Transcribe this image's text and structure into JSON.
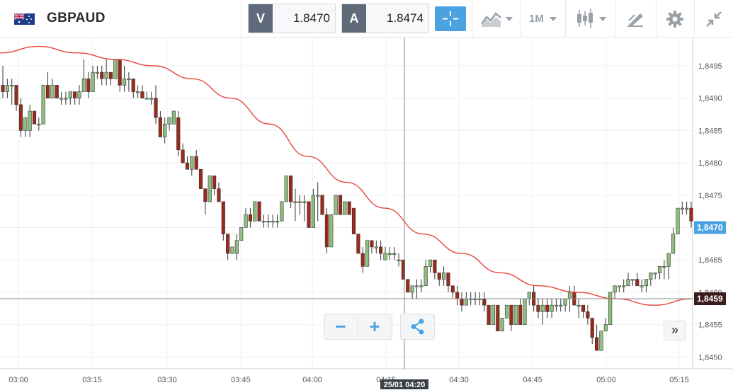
{
  "instrument": {
    "name": "GBPAUD",
    "flag": "GB-AU flag"
  },
  "prices": {
    "sell_label": "V",
    "sell_value": "1.8470",
    "buy_label": "A",
    "buy_value": "1.8474"
  },
  "toolbar": {
    "icons": [
      "crosshair-icon",
      "chart-type-icon",
      "candlestick-icon",
      "drawing-tools-icon",
      "gear-icon",
      "collapse-icon"
    ],
    "timeframe": "1M"
  },
  "zoom_controls": {
    "zoom_out": "−",
    "zoom_in": "+",
    "fast_forward": "»"
  },
  "colors": {
    "accent": "#4aa3e0",
    "bull": "#8fbf7f",
    "bear": "#9c2a1a",
    "moving_average": "#e8453c"
  },
  "chart_data": {
    "type": "candlestick",
    "interval": "1 minute",
    "x_ticks": [
      "03:00",
      "03:15",
      "03:30",
      "03:45",
      "04:00",
      "04:15",
      "04:30",
      "04:45",
      "05:00",
      "05:15"
    ],
    "y_ticks": [
      "1,8450",
      "1,8455",
      "1,8460",
      "1,8465",
      "1,8470",
      "1,8475",
      "1,8480",
      "1,8485",
      "1,8490",
      "1,8495"
    ],
    "ylim": [
      1.84485,
      1.8498
    ],
    "grid": true,
    "current_price_label": "1,8470",
    "crosshair": {
      "time_label": "25/01 04:20",
      "price_label": "1,8459"
    },
    "ohlc": [
      [
        1.8492,
        1.8495,
        1.849,
        1.8491
      ],
      [
        1.8491,
        1.8493,
        1.849,
        1.8492
      ],
      [
        1.8492,
        1.8493,
        1.8489,
        1.8492
      ],
      [
        1.8492,
        1.8492,
        1.8488,
        1.8489
      ],
      [
        1.8489,
        1.849,
        1.8484,
        1.8485
      ],
      [
        1.8485,
        1.8487,
        1.8484,
        1.8487
      ],
      [
        1.8485,
        1.8489,
        1.8484,
        1.8488
      ],
      [
        1.8488,
        1.8488,
        1.8486,
        1.8486
      ],
      [
        1.8486,
        1.8487,
        1.8485,
        1.8486
      ],
      [
        1.8486,
        1.8492,
        1.8486,
        1.8492
      ],
      [
        1.8492,
        1.8494,
        1.849,
        1.849
      ],
      [
        1.849,
        1.8493,
        1.849,
        1.8492
      ],
      [
        1.8492,
        1.8492,
        1.849,
        1.849
      ],
      [
        1.849,
        1.8491,
        1.8489,
        1.849
      ],
      [
        1.849,
        1.8491,
        1.8489,
        1.849
      ],
      [
        1.849,
        1.8491,
        1.8489,
        1.8491
      ],
      [
        1.8491,
        1.8491,
        1.8489,
        1.849
      ],
      [
        1.849,
        1.8492,
        1.8489,
        1.8491
      ],
      [
        1.8491,
        1.8496,
        1.8491,
        1.8493
      ],
      [
        1.8493,
        1.8494,
        1.849,
        1.8491
      ],
      [
        1.8491,
        1.8495,
        1.8491,
        1.8494
      ],
      [
        1.8494,
        1.8495,
        1.8493,
        1.8494
      ],
      [
        1.8494,
        1.8495,
        1.8492,
        1.8493
      ],
      [
        1.8493,
        1.8496,
        1.8492,
        1.8494
      ],
      [
        1.8494,
        1.8494,
        1.8492,
        1.8493
      ],
      [
        1.8493,
        1.8496,
        1.8493,
        1.8496
      ],
      [
        1.8496,
        1.8496,
        1.8491,
        1.8492
      ],
      [
        1.8492,
        1.8495,
        1.8491,
        1.8493
      ],
      [
        1.8493,
        1.8494,
        1.8491,
        1.8493
      ],
      [
        1.8493,
        1.8493,
        1.849,
        1.8491
      ],
      [
        1.8491,
        1.8492,
        1.849,
        1.8491
      ],
      [
        1.8491,
        1.8492,
        1.849,
        1.849
      ],
      [
        1.849,
        1.8491,
        1.849,
        1.849
      ],
      [
        1.849,
        1.8491,
        1.8489,
        1.849
      ],
      [
        1.849,
        1.8492,
        1.8486,
        1.8487
      ],
      [
        1.8487,
        1.8488,
        1.8484,
        1.8484
      ],
      [
        1.8484,
        1.8487,
        1.8483,
        1.8486
      ],
      [
        1.8486,
        1.8487,
        1.8485,
        1.8487
      ],
      [
        1.8486,
        1.8488,
        1.8486,
        1.8488
      ],
      [
        1.8487,
        1.8488,
        1.8481,
        1.8482
      ],
      [
        1.8482,
        1.8483,
        1.848,
        1.848
      ],
      [
        1.848,
        1.8481,
        1.8479,
        1.8479
      ],
      [
        1.8479,
        1.8481,
        1.8478,
        1.8481
      ],
      [
        1.8481,
        1.8482,
        1.8479,
        1.8479
      ],
      [
        1.8479,
        1.8479,
        1.8476,
        1.8476
      ],
      [
        1.8476,
        1.8476,
        1.8472,
        1.8474
      ],
      [
        1.8474,
        1.8478,
        1.8474,
        1.8478
      ],
      [
        1.8478,
        1.8478,
        1.8475,
        1.8476
      ],
      [
        1.8476,
        1.8477,
        1.8474,
        1.8474
      ],
      [
        1.8474,
        1.8474,
        1.8468,
        1.8469
      ],
      [
        1.8469,
        1.8469,
        1.8465,
        1.8466
      ],
      [
        1.8466,
        1.8467,
        1.8466,
        1.8467
      ],
      [
        1.8466,
        1.8469,
        1.8465,
        1.8468
      ],
      [
        1.8468,
        1.847,
        1.8468,
        1.847
      ],
      [
        1.847,
        1.8473,
        1.847,
        1.8472
      ],
      [
        1.8472,
        1.8473,
        1.847,
        1.8471
      ],
      [
        1.8471,
        1.8474,
        1.8471,
        1.8474
      ],
      [
        1.8474,
        1.8474,
        1.8471,
        1.8471
      ],
      [
        1.8471,
        1.8472,
        1.847,
        1.8471
      ],
      [
        1.8471,
        1.8472,
        1.847,
        1.8471
      ],
      [
        1.8471,
        1.8472,
        1.847,
        1.8471
      ],
      [
        1.8471,
        1.8472,
        1.847,
        1.8471
      ],
      [
        1.8471,
        1.8474,
        1.8471,
        1.8474
      ],
      [
        1.8474,
        1.8478,
        1.8474,
        1.8478
      ],
      [
        1.8478,
        1.8478,
        1.8473,
        1.8474
      ],
      [
        1.8474,
        1.8476,
        1.8471,
        1.8474
      ],
      [
        1.8474,
        1.8475,
        1.8472,
        1.8474
      ],
      [
        1.8474,
        1.8475,
        1.8471,
        1.8474
      ],
      [
        1.8474,
        1.8474,
        1.847,
        1.847
      ],
      [
        1.847,
        1.8476,
        1.847,
        1.8475
      ],
      [
        1.8475,
        1.8477,
        1.8471,
        1.8475
      ],
      [
        1.8475,
        1.8475,
        1.8472,
        1.8472
      ],
      [
        1.8472,
        1.8473,
        1.8466,
        1.8467
      ],
      [
        1.8467,
        1.8472,
        1.8467,
        1.8472
      ],
      [
        1.8472,
        1.8475,
        1.8472,
        1.8475
      ],
      [
        1.8475,
        1.8475,
        1.8472,
        1.8472
      ],
      [
        1.8472,
        1.8474,
        1.8472,
        1.8474
      ],
      [
        1.8474,
        1.8474,
        1.8472,
        1.8472
      ],
      [
        1.8473,
        1.8473,
        1.8469,
        1.8469
      ],
      [
        1.8469,
        1.8469,
        1.8466,
        1.8466
      ],
      [
        1.8466,
        1.8467,
        1.8463,
        1.8464
      ],
      [
        1.8464,
        1.8468,
        1.8464,
        1.8468
      ],
      [
        1.8468,
        1.8468,
        1.8466,
        1.8467
      ],
      [
        1.8467,
        1.8468,
        1.8466,
        1.8467
      ],
      [
        1.8467,
        1.8468,
        1.8465,
        1.8466
      ],
      [
        1.8465,
        1.8467,
        1.8465,
        1.8466
      ],
      [
        1.8466,
        1.8467,
        1.8465,
        1.8466
      ],
      [
        1.8466,
        1.8467,
        1.8465,
        1.8466
      ],
      [
        1.8465,
        1.8466,
        1.8464,
        1.8465
      ],
      [
        1.8465,
        1.8465,
        1.8462,
        1.8462
      ],
      [
        1.8462,
        1.8462,
        1.846,
        1.846
      ],
      [
        1.846,
        1.8461,
        1.8459,
        1.8461
      ],
      [
        1.8461,
        1.8462,
        1.8459,
        1.8461
      ],
      [
        1.8461,
        1.8462,
        1.846,
        1.8461
      ],
      [
        1.8461,
        1.8465,
        1.8461,
        1.8464
      ],
      [
        1.8464,
        1.8465,
        1.8463,
        1.8465
      ],
      [
        1.8465,
        1.8465,
        1.8462,
        1.8463
      ],
      [
        1.8463,
        1.8463,
        1.8461,
        1.8462
      ],
      [
        1.8462,
        1.8464,
        1.8461,
        1.8463
      ],
      [
        1.8463,
        1.8463,
        1.846,
        1.8461
      ],
      [
        1.8461,
        1.8461,
        1.8459,
        1.846
      ],
      [
        1.846,
        1.8461,
        1.8458,
        1.8459
      ],
      [
        1.8459,
        1.846,
        1.8457,
        1.8458
      ],
      [
        1.8458,
        1.846,
        1.8458,
        1.8459
      ],
      [
        1.8459,
        1.846,
        1.8458,
        1.8459
      ],
      [
        1.8459,
        1.846,
        1.8458,
        1.8459
      ],
      [
        1.8459,
        1.846,
        1.8458,
        1.8459
      ],
      [
        1.8459,
        1.846,
        1.8457,
        1.8458
      ],
      [
        1.8458,
        1.8458,
        1.8455,
        1.8455
      ],
      [
        1.8455,
        1.8458,
        1.8455,
        1.8458
      ],
      [
        1.8458,
        1.8458,
        1.8454,
        1.8454
      ],
      [
        1.8454,
        1.8456,
        1.8454,
        1.8456
      ],
      [
        1.8456,
        1.8458,
        1.8456,
        1.8458
      ],
      [
        1.8458,
        1.8458,
        1.8454,
        1.8455
      ],
      [
        1.8455,
        1.8458,
        1.8455,
        1.8458
      ],
      [
        1.8458,
        1.8459,
        1.8455,
        1.8455
      ],
      [
        1.8455,
        1.8459,
        1.8455,
        1.8459
      ],
      [
        1.8459,
        1.846,
        1.8458,
        1.846
      ],
      [
        1.846,
        1.8461,
        1.8457,
        1.8458
      ],
      [
        1.8458,
        1.8459,
        1.8456,
        1.8457
      ],
      [
        1.8457,
        1.8459,
        1.8455,
        1.8458
      ],
      [
        1.8458,
        1.8459,
        1.8456,
        1.8457
      ],
      [
        1.8457,
        1.8459,
        1.8456,
        1.8458
      ],
      [
        1.8458,
        1.8459,
        1.8457,
        1.8458
      ],
      [
        1.8458,
        1.8459,
        1.8457,
        1.8458
      ],
      [
        1.8458,
        1.8459,
        1.8457,
        1.8459
      ],
      [
        1.8459,
        1.8461,
        1.8457,
        1.846
      ],
      [
        1.846,
        1.8461,
        1.8458,
        1.8458
      ],
      [
        1.8458,
        1.8459,
        1.8456,
        1.8458
      ],
      [
        1.8458,
        1.8458,
        1.8456,
        1.8457
      ],
      [
        1.8457,
        1.8458,
        1.8455,
        1.8456
      ],
      [
        1.8456,
        1.8456,
        1.8452,
        1.8453
      ],
      [
        1.8453,
        1.8455,
        1.8451,
        1.8451
      ],
      [
        1.8451,
        1.8454,
        1.8451,
        1.8454
      ],
      [
        1.8454,
        1.8456,
        1.8454,
        1.8455
      ],
      [
        1.8455,
        1.846,
        1.8455,
        1.846
      ],
      [
        1.846,
        1.8461,
        1.8459,
        1.8461
      ],
      [
        1.8461,
        1.8461,
        1.846,
        1.8461
      ],
      [
        1.8461,
        1.8462,
        1.846,
        1.8461
      ],
      [
        1.8461,
        1.8463,
        1.8461,
        1.8462
      ],
      [
        1.8462,
        1.8462,
        1.8461,
        1.8462
      ],
      [
        1.8462,
        1.8463,
        1.8461,
        1.8461
      ],
      [
        1.8461,
        1.8462,
        1.846,
        1.8461
      ],
      [
        1.8461,
        1.8462,
        1.846,
        1.8462
      ],
      [
        1.8462,
        1.8463,
        1.8461,
        1.8463
      ],
      [
        1.8463,
        1.8463,
        1.8462,
        1.8463
      ],
      [
        1.8463,
        1.8464,
        1.8462,
        1.8464
      ],
      [
        1.8464,
        1.8465,
        1.8462,
        1.8464
      ],
      [
        1.8464,
        1.8466,
        1.8462,
        1.8466
      ],
      [
        1.8466,
        1.847,
        1.8466,
        1.8469
      ],
      [
        1.8469,
        1.8473,
        1.8469,
        1.8473
      ],
      [
        1.8473,
        1.8474,
        1.8472,
        1.8473
      ],
      [
        1.8473,
        1.8474,
        1.8472,
        1.8473
      ],
      [
        1.8473,
        1.8474,
        1.847,
        1.8471
      ]
    ],
    "moving_average": {
      "start_index": 0,
      "values": [
        1.8497,
        1.8498,
        1.8497,
        1.8496,
        1.8495,
        1.8493,
        1.849,
        1.8486,
        1.8481,
        1.8477,
        1.8473,
        1.8469,
        1.8466,
        1.8463,
        1.8461,
        1.846,
        1.8459,
        1.8458,
        1.8459
      ],
      "step": 9
    }
  }
}
